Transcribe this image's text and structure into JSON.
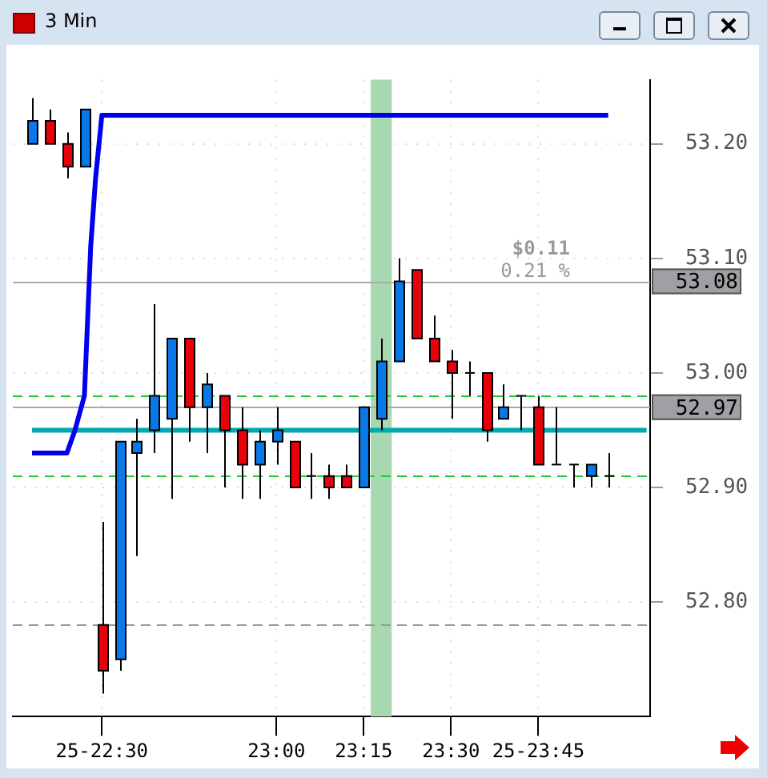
{
  "chart_data": {
    "type": "candlestick",
    "title": "3 Min",
    "x": [
      22.3,
      22.35,
      22.4,
      22.45,
      22.5,
      22.55,
      22.6,
      22.65,
      22.7,
      22.75,
      22.8,
      22.85,
      22.9,
      22.95,
      23.0,
      23.05,
      23.1,
      23.15,
      23.2,
      23.25,
      23.3,
      23.35,
      23.4,
      23.45,
      23.5,
      23.55,
      23.6,
      23.65,
      23.7,
      23.75,
      23.8,
      23.85,
      23.9,
      23.95
    ],
    "ohlc": [
      [
        53.2,
        53.24,
        53.2,
        53.22
      ],
      [
        53.22,
        53.23,
        53.2,
        53.2
      ],
      [
        53.2,
        53.21,
        53.17,
        53.18
      ],
      [
        53.18,
        53.23,
        53.18,
        53.23
      ],
      [
        52.78,
        52.87,
        52.72,
        52.74
      ],
      [
        52.75,
        52.94,
        52.74,
        52.94
      ],
      [
        52.93,
        52.96,
        52.84,
        52.94
      ],
      [
        52.95,
        53.06,
        52.93,
        52.98
      ],
      [
        52.96,
        53.03,
        52.89,
        53.03
      ],
      [
        53.03,
        53.03,
        52.94,
        52.97
      ],
      [
        52.97,
        53.0,
        52.93,
        52.99
      ],
      [
        52.98,
        52.98,
        52.9,
        52.95
      ],
      [
        52.95,
        52.97,
        52.89,
        52.92
      ],
      [
        52.92,
        52.95,
        52.89,
        52.94
      ],
      [
        52.94,
        52.97,
        52.92,
        52.95
      ],
      [
        52.94,
        52.94,
        52.9,
        52.9
      ],
      [
        52.91,
        52.93,
        52.89,
        52.91
      ],
      [
        52.91,
        52.92,
        52.89,
        52.9
      ],
      [
        52.91,
        52.92,
        52.9,
        52.9
      ],
      [
        52.9,
        52.97,
        52.9,
        52.97
      ],
      [
        52.96,
        53.03,
        52.95,
        53.01
      ],
      [
        53.01,
        53.1,
        53.01,
        53.08
      ],
      [
        53.09,
        53.09,
        53.03,
        53.03
      ],
      [
        53.03,
        53.05,
        53.01,
        53.01
      ],
      [
        53.01,
        53.02,
        52.96,
        53.0
      ],
      [
        53.0,
        53.01,
        52.98,
        53.0
      ],
      [
        53.0,
        53.0,
        52.94,
        52.95
      ],
      [
        52.96,
        52.99,
        52.96,
        52.97
      ],
      [
        52.98,
        52.98,
        52.95,
        52.98
      ],
      [
        52.97,
        52.98,
        52.92,
        52.92
      ],
      [
        52.92,
        52.97,
        52.92,
        52.92
      ],
      [
        52.92,
        52.92,
        52.9,
        52.92
      ],
      [
        52.91,
        52.92,
        52.9,
        52.92
      ],
      [
        52.91,
        52.93,
        52.9,
        52.91
      ]
    ],
    "colors": [
      "#0a78e6",
      "#e8000a",
      "#e8000a",
      "#0a78e6",
      "#e8000a",
      "#0a78e6",
      "#0a78e6",
      "#0a78e6",
      "#0a78e6",
      "#e8000a",
      "#0a78e6",
      "#e8000a",
      "#e8000a",
      "#0a78e6",
      "#0a78e6",
      "#e8000a",
      "#000000",
      "#e8000a",
      "#e8000a",
      "#0a78e6",
      "#0a78e6",
      "#0a78e6",
      "#e8000a",
      "#e8000a",
      "#e8000a",
      "#000000",
      "#e8000a",
      "#0a78e6",
      "#000000",
      "#e8000a",
      "#000000",
      "#000000",
      "#0a78e6",
      "#000000"
    ],
    "series": [
      {
        "type": "line",
        "color": "#0000ee",
        "x": [
          22.3,
          22.35,
          22.4,
          22.423,
          22.45,
          22.468,
          22.482,
          22.5,
          23.95
        ],
        "values": [
          52.93,
          52.93,
          52.93,
          52.95,
          52.98,
          53.11,
          53.17,
          53.225,
          53.225
        ]
      },
      {
        "type": "line",
        "color": "#00aab0",
        "x": [
          22.3,
          24.06
        ],
        "values": [
          52.95,
          52.95
        ]
      }
    ],
    "ref_lines": [
      {
        "axis": "y",
        "value": 52.98,
        "color": "#22cc33",
        "line_style": "dashed"
      },
      {
        "axis": "y",
        "value": 52.91,
        "color": "#22cc33",
        "line_style": "dashed"
      },
      {
        "axis": "y",
        "value": 52.78,
        "color": "#999999",
        "line_style": "dashed"
      },
      {
        "axis": "y",
        "value": 53.08,
        "label": "53.08",
        "color": "#aaaaaa",
        "line_style": "solid"
      },
      {
        "axis": "y",
        "value": 52.97,
        "label": "52.97",
        "color": "#aaaaaa",
        "line_style": "solid"
      }
    ],
    "bands": [
      {
        "axis": "x",
        "from": 23.27,
        "to": 23.33,
        "color": "#a8d8b0"
      }
    ],
    "annotations": [
      "$0.11",
      "0.21 %"
    ],
    "xlim": [
      22.245,
      24.07
    ],
    "ylim": [
      52.7,
      53.256
    ],
    "xticks": [
      {
        "value": 22.5,
        "label": "25-22:30"
      },
      {
        "value": 23.0,
        "label": "23:00"
      },
      {
        "value": 23.25,
        "label": "23:15"
      },
      {
        "value": 23.5,
        "label": "23:30"
      },
      {
        "value": 23.75,
        "label": "25-23:45"
      }
    ],
    "yticks": [
      {
        "value": 52.8,
        "label": "52.80"
      },
      {
        "value": 52.9,
        "label": "52.90"
      },
      {
        "value": 53.0,
        "label": "53.00"
      },
      {
        "value": 53.1,
        "label": "53.10"
      },
      {
        "value": 53.2,
        "label": "53.20"
      }
    ],
    "grid": true,
    "legend": false,
    "marker": "none",
    "line_style": "solid"
  }
}
